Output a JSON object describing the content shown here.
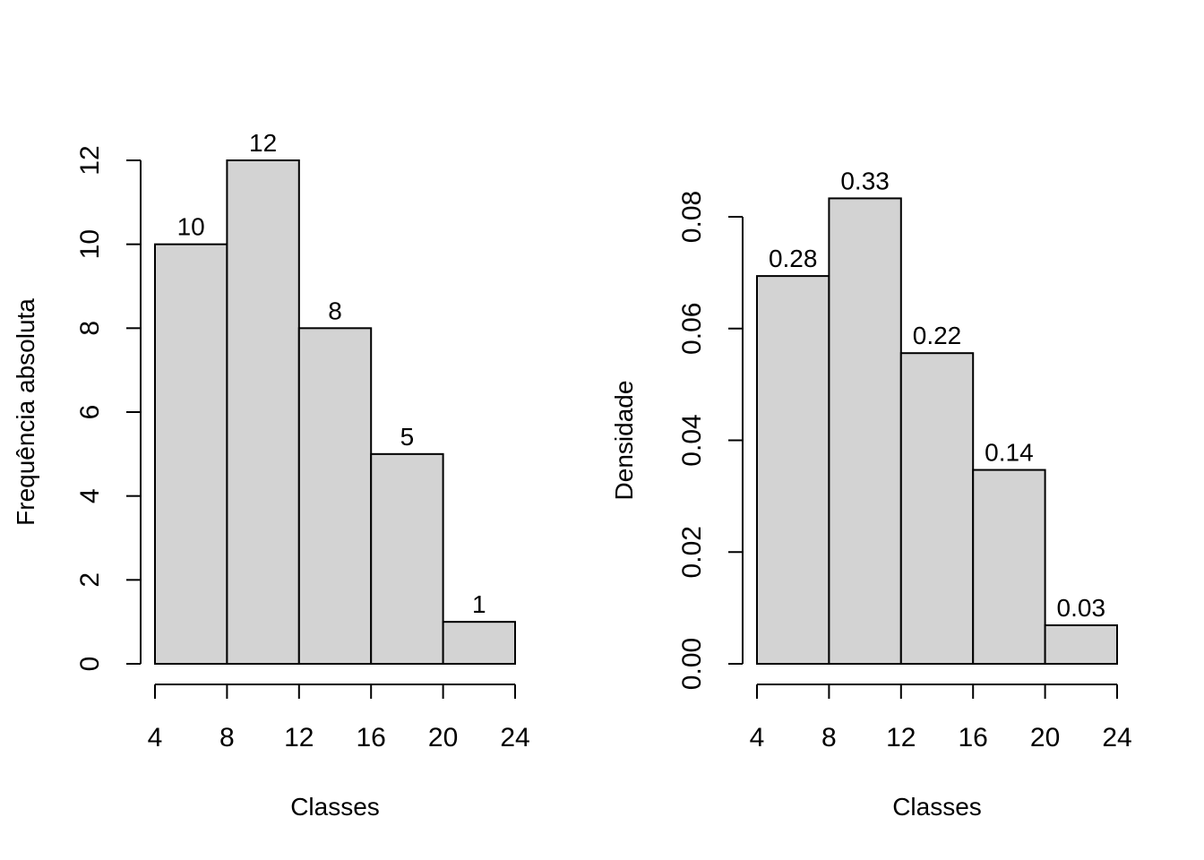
{
  "chart_data": [
    {
      "type": "bar",
      "subtype": "histogram",
      "title": "",
      "xlabel": "Classes",
      "ylabel": "Frequência absoluta",
      "bins": [
        [
          4,
          8
        ],
        [
          8,
          12
        ],
        [
          12,
          16
        ],
        [
          16,
          20
        ],
        [
          20,
          24
        ]
      ],
      "values": [
        10,
        12,
        8,
        5,
        1
      ],
      "bar_labels": [
        "10",
        "12",
        "8",
        "5",
        "1"
      ],
      "xticks": [
        4,
        8,
        12,
        16,
        20,
        24
      ],
      "xtick_labels": [
        "4",
        "8",
        "12",
        "16",
        "20",
        "24"
      ],
      "yticks": [
        0,
        2,
        4,
        6,
        8,
        10,
        12
      ],
      "ytick_labels": [
        "0",
        "2",
        "4",
        "6",
        "8",
        "10",
        "12"
      ],
      "xlim": [
        4,
        24
      ],
      "ylim": [
        0,
        12
      ],
      "grid": false,
      "bar_color": "#d3d3d3"
    },
    {
      "type": "bar",
      "subtype": "histogram",
      "title": "",
      "xlabel": "Classes",
      "ylabel": "Densidade",
      "bins": [
        [
          4,
          8
        ],
        [
          8,
          12
        ],
        [
          12,
          16
        ],
        [
          16,
          20
        ],
        [
          20,
          24
        ]
      ],
      "values": [
        0.0694,
        0.0833,
        0.0556,
        0.0347,
        0.0069
      ],
      "bar_labels": [
        "0.28",
        "0.33",
        "0.22",
        "0.14",
        "0.03"
      ],
      "xticks": [
        4,
        8,
        12,
        16,
        20,
        24
      ],
      "xtick_labels": [
        "4",
        "8",
        "12",
        "16",
        "20",
        "24"
      ],
      "yticks": [
        0,
        0.02,
        0.04,
        0.06,
        0.08
      ],
      "ytick_labels": [
        "0.00",
        "0.02",
        "0.04",
        "0.06",
        "0.08"
      ],
      "xlim": [
        4,
        24
      ],
      "ylim": [
        0,
        0.08
      ],
      "grid": false,
      "bar_color": "#d3d3d3"
    }
  ]
}
